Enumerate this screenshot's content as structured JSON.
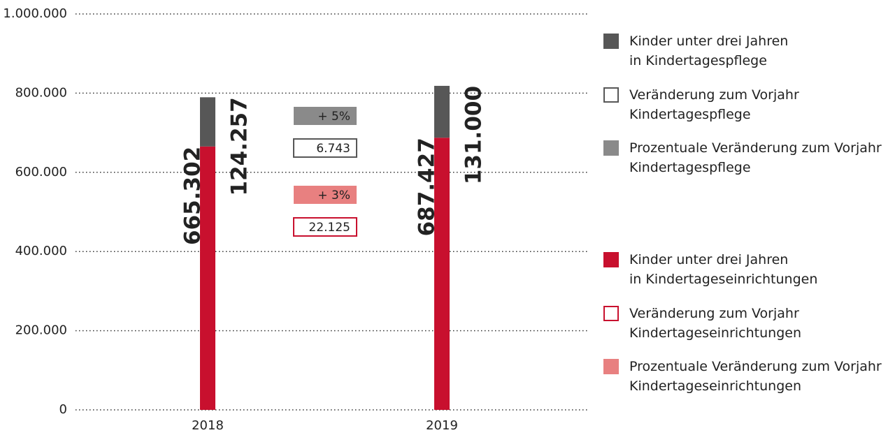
{
  "chart_data": {
    "type": "bar",
    "stacked": true,
    "categories": [
      "2018",
      "2019"
    ],
    "series": [
      {
        "name": "Kinder unter drei Jahren\nin Kindertageseinrichtungen",
        "color": "#c8102e",
        "values": [
          665302,
          687427
        ],
        "value_labels": [
          "665.302",
          "687.427"
        ]
      },
      {
        "name": "Kinder unter drei Jahren\nin Kindertagespflege",
        "color": "#575757",
        "values": [
          124257,
          131000
        ],
        "value_labels": [
          "124.257",
          "131.000"
        ]
      }
    ],
    "annotations": [
      {
        "legend": "Prozentuale Veränderung zum Vorjahr\nKindertagespflege",
        "value": 5,
        "label": "+ 5%",
        "color": "#8a8a8a",
        "style": "filled"
      },
      {
        "legend": "Veränderung zum Vorjahr\nKindertagespflege",
        "value": 6743,
        "label": "6.743",
        "color": "#575757",
        "style": "outline"
      },
      {
        "legend": "Prozentuale Veränderung zum Vorjahr\nKindertageseinrichtungen",
        "value": 3,
        "label": "+ 3%",
        "color": "#e88080",
        "style": "filled"
      },
      {
        "legend": "Veränderung zum Vorjahr\nKindertageseinrichtungen",
        "value": 22125,
        "label": "22.125",
        "color": "#c8102e",
        "style": "outline"
      }
    ],
    "ylim": [
      0,
      1000000
    ],
    "yticks": [
      0,
      {
        "value": 200000,
        "label": "200.000"
      },
      {
        "value": 400000,
        "label": "400.000"
      },
      {
        "value": 600000,
        "label": "600.000"
      },
      {
        "value": 800000,
        "label": "800.000"
      },
      {
        "value": 1000000,
        "label": "1.000.000"
      }
    ],
    "grid": true
  }
}
